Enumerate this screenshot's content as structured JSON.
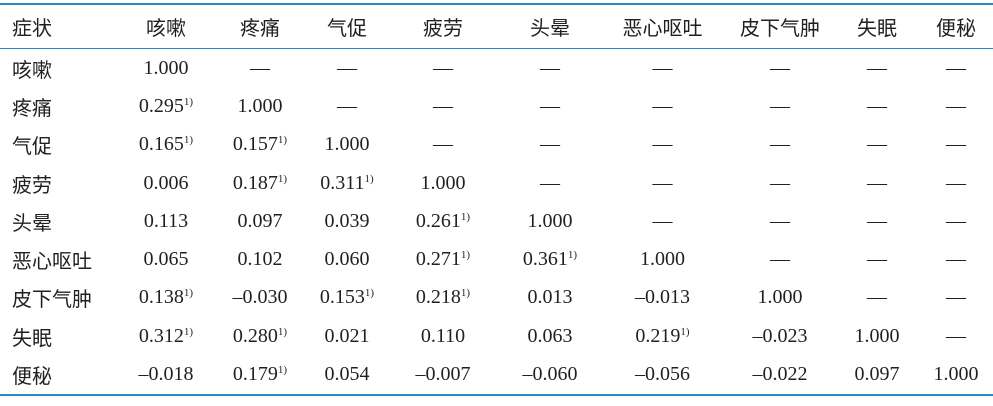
{
  "table": {
    "header": [
      "症状",
      "咳嗽",
      "疼痛",
      "气促",
      "疲劳",
      "头晕",
      "恶心呕吐",
      "皮下气肿",
      "失眠",
      "便秘"
    ],
    "rows": [
      [
        "咳嗽",
        "1.000",
        "—",
        "—",
        "—",
        "—",
        "—",
        "—",
        "—",
        "—"
      ],
      [
        "疼痛",
        {
          "text": "0.295",
          "mark": "1)"
        },
        "1.000",
        "—",
        "—",
        "—",
        "—",
        "—",
        "—",
        "—"
      ],
      [
        "气促",
        {
          "text": "0.165",
          "mark": "1)"
        },
        {
          "text": "0.157",
          "mark": "1)"
        },
        "1.000",
        "—",
        "—",
        "—",
        "—",
        "—",
        "—"
      ],
      [
        "疲劳",
        "0.006",
        {
          "text": "0.187",
          "mark": "1)"
        },
        {
          "text": "0.311",
          "mark": "1)"
        },
        "1.000",
        "—",
        "—",
        "—",
        "—",
        "—"
      ],
      [
        "头晕",
        "0.113",
        "0.097",
        "0.039",
        {
          "text": "0.261",
          "mark": "1)"
        },
        "1.000",
        "—",
        "—",
        "—",
        "—"
      ],
      [
        "恶心呕吐",
        "0.065",
        "0.102",
        "0.060",
        {
          "text": "0.271",
          "mark": "1)"
        },
        {
          "text": "0.361",
          "mark": "1)"
        },
        "1.000",
        "—",
        "—",
        "—"
      ],
      [
        "皮下气肿",
        {
          "text": "0.138",
          "mark": "1)"
        },
        "–0.030",
        {
          "text": "0.153",
          "mark": "1)"
        },
        {
          "text": "0.218",
          "mark": "1)"
        },
        "0.013",
        "–0.013",
        "1.000",
        "—",
        "—"
      ],
      [
        "失眠",
        {
          "text": "0.312",
          "mark": "1)"
        },
        {
          "text": "0.280",
          "mark": "1)"
        },
        "0.021",
        "0.110",
        "0.063",
        {
          "text": "0.219",
          "mark": "1)"
        },
        "–0.023",
        "1.000",
        "—"
      ],
      [
        "便秘",
        "–0.018",
        {
          "text": "0.179",
          "mark": "1)"
        },
        "0.054",
        "–0.007",
        "–0.060",
        "–0.056",
        "–0.022",
        "0.097",
        "1.000"
      ]
    ]
  }
}
